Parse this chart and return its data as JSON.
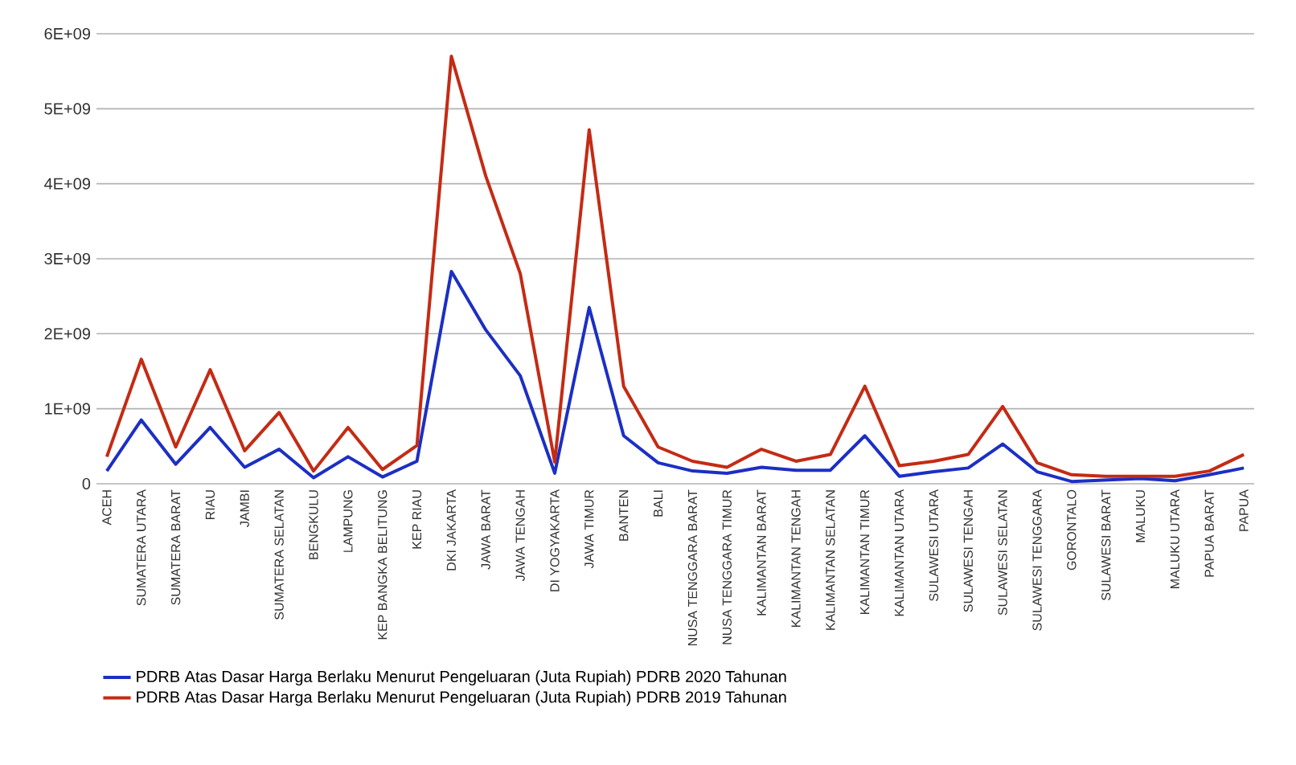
{
  "chart_data": {
    "type": "line",
    "categories": [
      "ACEH",
      "SUMATERA UTARA",
      "SUMATERA BARAT",
      "RIAU",
      "JAMBI",
      "SUMATERA SELATAN",
      "BENGKULU",
      "LAMPUNG",
      "KEP BANGKA BELITUNG",
      "KEP RIAU",
      "DKI JAKARTA",
      "JAWA BARAT",
      "JAWA TENGAH",
      "DI YOGYAKARTA",
      "JAWA TIMUR",
      "BANTEN",
      "BALI",
      "NUSA TENGGARA BARAT",
      "NUSA TENGGARA TIMUR",
      "KALIMANTAN BARAT",
      "KALIMANTAN TENGAH",
      "KALIMANTAN SELATAN",
      "KALIMANTAN TIMUR",
      "KALIMANTAN UTARA",
      "SULAWESI UTARA",
      "SULAWESI TENGAH",
      "SULAWESI SELATAN",
      "SULAWESI TENGGARA",
      "GORONTALO",
      "SULAWESI BARAT",
      "MALUKU",
      "MALUKU UTARA",
      "PAPUA BARAT",
      "PAPUA"
    ],
    "series": [
      {
        "name": "PDRB Atas Dasar Harga Berlaku Menurut Pengeluaran (Juta Rupiah) PDRB 2020 Tahunan",
        "color": "#1c2fc4",
        "values": [
          170000000,
          850000000,
          260000000,
          750000000,
          220000000,
          460000000,
          80000000,
          360000000,
          90000000,
          300000000,
          2830000000,
          2050000000,
          1440000000,
          140000000,
          2350000000,
          640000000,
          280000000,
          170000000,
          140000000,
          220000000,
          180000000,
          180000000,
          640000000,
          100000000,
          160000000,
          210000000,
          530000000,
          160000000,
          30000000,
          50000000,
          70000000,
          40000000,
          120000000,
          210000000
        ]
      },
      {
        "name": "PDRB Atas Dasar Harga Berlaku Menurut Pengeluaran (Juta Rupiah) PDRB 2019 Tahunan",
        "color": "#c42b14",
        "values": [
          360000000,
          1660000000,
          490000000,
          1520000000,
          440000000,
          950000000,
          170000000,
          750000000,
          190000000,
          510000000,
          5700000000,
          4100000000,
          2800000000,
          290000000,
          4720000000,
          1300000000,
          490000000,
          300000000,
          220000000,
          460000000,
          300000000,
          390000000,
          1300000000,
          240000000,
          300000000,
          390000000,
          1030000000,
          280000000,
          120000000,
          100000000,
          100000000,
          100000000,
          170000000,
          390000000
        ]
      }
    ],
    "ylim": [
      0,
      6000000000
    ],
    "yticks": [
      0,
      {
        "value": 1000000000,
        "label": "1E+09"
      },
      {
        "value": 2000000000,
        "label": "2E+09"
      },
      {
        "value": 3000000000,
        "label": "3E+09"
      },
      {
        "value": 4000000000,
        "label": "4E+09"
      },
      {
        "value": 5000000000,
        "label": "5E+09"
      },
      {
        "value": 6000000000,
        "label": "6E+09"
      }
    ],
    "grid": "y",
    "legend": "bottom"
  }
}
